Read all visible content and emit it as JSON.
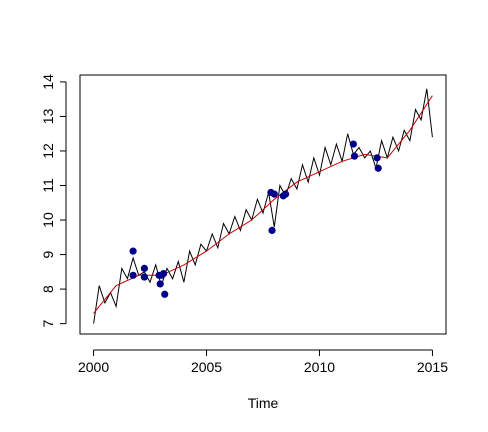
{
  "chart_data": {
    "type": "line",
    "title": "",
    "xlabel": "Time",
    "ylabel": "",
    "xlim": [
      1999.4,
      2015.6
    ],
    "ylim": [
      6.7,
      14.2
    ],
    "x_ticks": [
      2000,
      2005,
      2010,
      2015
    ],
    "x_tick_labels": [
      "2000",
      "2005",
      "2010",
      "2015"
    ],
    "y_ticks": [
      7,
      8,
      9,
      10,
      11,
      12,
      13,
      14
    ],
    "y_tick_labels": [
      "7",
      "8",
      "9",
      "10",
      "11",
      "12",
      "13",
      "14"
    ],
    "grid": false,
    "series": [
      {
        "style": "line",
        "color": "#000000",
        "x": [
          2000.0,
          2000.25,
          2000.5,
          2000.75,
          2001.0,
          2001.25,
          2001.5,
          2001.75,
          2002.0,
          2002.25,
          2002.5,
          2002.75,
          2003.0,
          2003.25,
          2003.5,
          2003.75,
          2004.0,
          2004.25,
          2004.5,
          2004.75,
          2005.0,
          2005.25,
          2005.5,
          2005.75,
          2006.0,
          2006.25,
          2006.5,
          2006.75,
          2007.0,
          2007.25,
          2007.5,
          2007.75,
          2008.0,
          2008.25,
          2008.5,
          2008.75,
          2009.0,
          2009.25,
          2009.5,
          2009.75,
          2010.0,
          2010.25,
          2010.5,
          2010.75,
          2011.0,
          2011.25,
          2011.5,
          2011.75,
          2012.0,
          2012.25,
          2012.5,
          2012.75,
          2013.0,
          2013.25,
          2013.5,
          2013.75,
          2014.0,
          2014.25,
          2014.5,
          2014.75,
          2015.0
        ],
        "y": [
          7.0,
          8.1,
          7.6,
          7.9,
          7.5,
          8.6,
          8.3,
          8.9,
          8.4,
          8.5,
          8.2,
          8.7,
          8.1,
          8.6,
          8.3,
          8.8,
          8.2,
          9.1,
          8.7,
          9.3,
          9.1,
          9.6,
          9.2,
          9.9,
          9.6,
          10.1,
          9.7,
          10.3,
          10.0,
          10.6,
          10.2,
          10.8,
          9.8,
          11.0,
          10.7,
          11.2,
          10.9,
          11.6,
          11.1,
          11.8,
          11.3,
          12.1,
          11.6,
          12.2,
          11.7,
          12.5,
          11.9,
          12.1,
          11.8,
          12.0,
          11.5,
          12.3,
          11.8,
          12.4,
          12.0,
          12.6,
          12.3,
          13.2,
          12.9,
          13.8,
          12.4
        ],
        "name": ""
      },
      {
        "style": "line",
        "color": "#cc0000",
        "x": [
          2000.0,
          2001.0,
          2002.0,
          2003.0,
          2004.0,
          2005.0,
          2006.0,
          2007.0,
          2008.0,
          2009.0,
          2010.0,
          2011.0,
          2012.0,
          2013.0,
          2014.0,
          2015.0
        ],
        "y": [
          7.3,
          8.1,
          8.4,
          8.4,
          8.7,
          9.1,
          9.6,
          10.0,
          10.6,
          11.1,
          11.4,
          11.7,
          11.9,
          11.8,
          12.6,
          13.6
        ],
        "name": ""
      },
      {
        "style": "points",
        "color": "#00008b",
        "x": [
          2001.75,
          2001.75,
          2002.25,
          2002.25,
          2002.9,
          2002.95,
          2003.0,
          2003.1,
          2003.15,
          2007.85,
          2007.9,
          2008.0,
          2008.4,
          2008.5,
          2011.5,
          2011.55,
          2012.55,
          2012.6
        ],
        "y": [
          9.1,
          8.4,
          8.6,
          8.35,
          8.4,
          8.15,
          8.4,
          8.45,
          7.85,
          10.8,
          9.7,
          10.75,
          10.7,
          10.75,
          12.2,
          11.85,
          11.8,
          11.5
        ],
        "name": ""
      }
    ]
  }
}
